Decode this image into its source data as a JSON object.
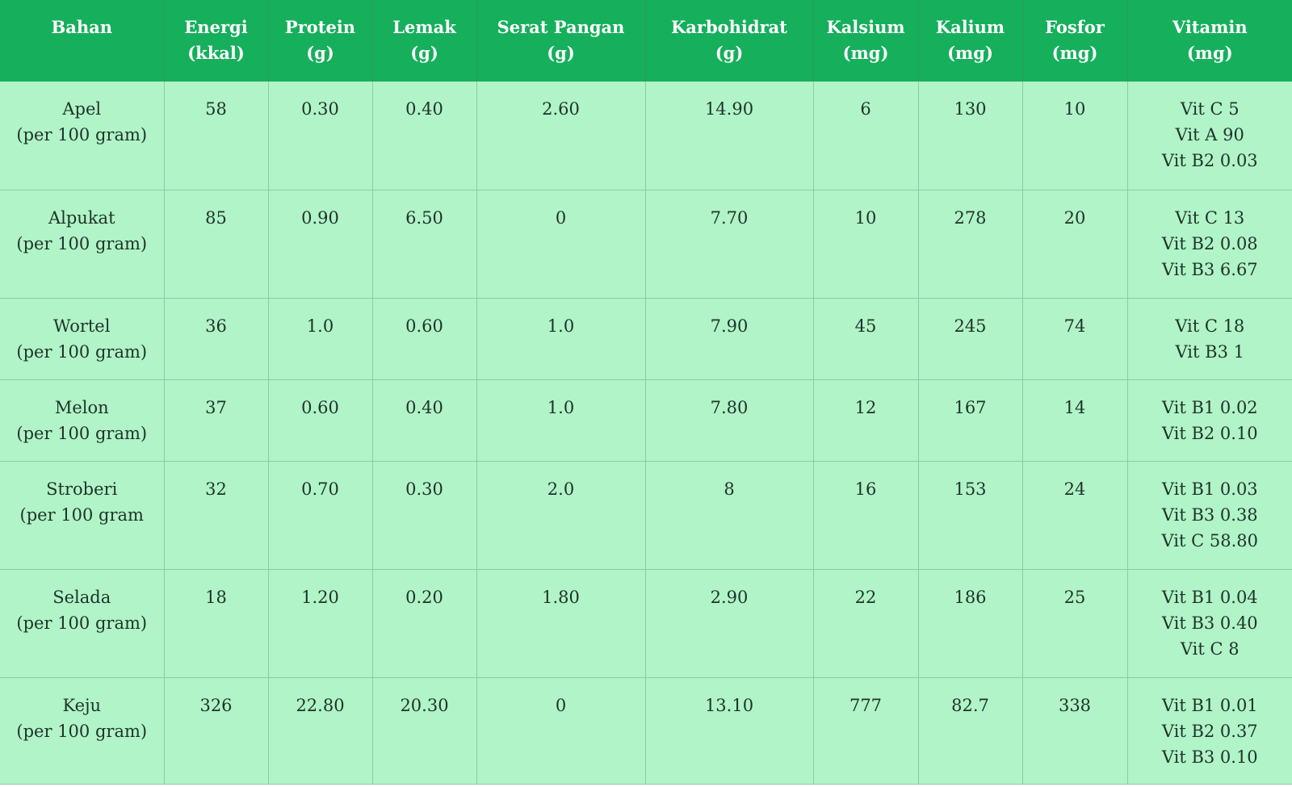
{
  "headers": [
    [
      "Bahan"
    ],
    [
      "Energi",
      "(kkal)"
    ],
    [
      "Protein",
      "(g)"
    ],
    [
      "Lemak",
      "(g)"
    ],
    [
      "Serat Pangan",
      "(g)"
    ],
    [
      "Karbohidrat",
      "(g)"
    ],
    [
      "Kalsium",
      "(mg)"
    ],
    [
      "Kalium",
      "(mg)"
    ],
    [
      "Fosfor",
      "(mg)"
    ],
    [
      "Vitamin",
      "(mg)"
    ]
  ],
  "rows": [
    {
      "bahan": [
        "Apel",
        "(per 100 gram)"
      ],
      "energi": "58",
      "protein": "0.30",
      "lemak": "0.40",
      "serat": "2.60",
      "karbohidrat": "14.90",
      "kalsium": "6",
      "kalium": "130",
      "fosfor": "10",
      "vitamin": [
        "Vit C 5",
        "Vit A 90",
        "Vit B2 0.03"
      ]
    },
    {
      "bahan": [
        "Alpukat",
        "(per 100 gram)"
      ],
      "energi": "85",
      "protein": "0.90",
      "lemak": "6.50",
      "serat": "0",
      "karbohidrat": "7.70",
      "kalsium": "10",
      "kalium": "278",
      "fosfor": "20",
      "vitamin": [
        "Vit C 13",
        "Vit B2 0.08",
        "Vit B3 6.67"
      ]
    },
    {
      "bahan": [
        "Wortel",
        "(per 100 gram)"
      ],
      "energi": "36",
      "protein": "1.0",
      "lemak": "0.60",
      "serat": "1.0",
      "karbohidrat": "7.90",
      "kalsium": "45",
      "kalium": "245",
      "fosfor": "74",
      "vitamin": [
        "Vit C 18",
        "Vit B3 1"
      ]
    },
    {
      "bahan": [
        "Melon",
        "(per 100 gram)"
      ],
      "energi": "37",
      "protein": "0.60",
      "lemak": "0.40",
      "serat": "1.0",
      "karbohidrat": "7.80",
      "kalsium": "12",
      "kalium": "167",
      "fosfor": "14",
      "vitamin": [
        "Vit B1 0.02",
        "Vit B2 0.10"
      ]
    },
    {
      "bahan": [
        "Stroberi",
        "(per 100 gram"
      ],
      "energi": "32",
      "protein": "0.70",
      "lemak": "0.30",
      "serat": "2.0",
      "karbohidrat": "8",
      "kalsium": "16",
      "kalium": "153",
      "fosfor": "24",
      "vitamin": [
        "Vit B1 0.03",
        "Vit B3 0.38",
        "Vit C 58.80"
      ]
    },
    {
      "bahan": [
        "Selada",
        "(per 100 gram)"
      ],
      "energi": "18",
      "protein": "1.20",
      "lemak": "0.20",
      "serat": "1.80",
      "karbohidrat": "2.90",
      "kalsium": "22",
      "kalium": "186",
      "fosfor": "25",
      "vitamin": [
        "Vit B1 0.04",
        "Vit B3 0.40",
        "Vit C 8"
      ]
    },
    {
      "bahan": [
        "Keju",
        "(per 100 gram)"
      ],
      "energi": "326",
      "protein": "22.80",
      "lemak": "20.30",
      "serat": "0",
      "karbohidrat": "13.10",
      "kalsium": "777",
      "kalium": "82.7",
      "fosfor": "338",
      "vitamin": [
        "Vit B1 0.01",
        "Vit B2 0.37",
        "Vit B3 0.10"
      ]
    }
  ]
}
